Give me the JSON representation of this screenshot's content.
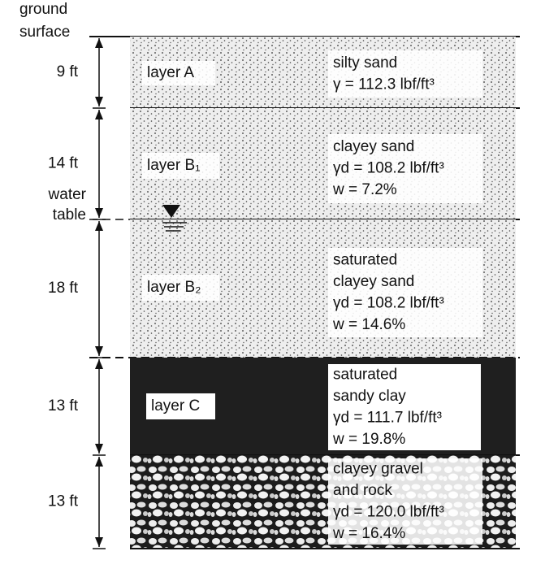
{
  "labels": {
    "ground_surface": [
      "ground",
      "surface"
    ],
    "water_table": [
      "water",
      "table"
    ]
  },
  "layers": [
    {
      "thickness": "9 ft",
      "name": "layer A",
      "description": [
        "silty sand",
        "γ = 112.3 lbf/ft³"
      ]
    },
    {
      "thickness": "14 ft",
      "name": "layer B₁",
      "description": [
        "clayey sand",
        "γd = 108.2 lbf/ft³",
        "w = 7.2%"
      ]
    },
    {
      "thickness": "18 ft",
      "name": "layer B₂",
      "description": [
        "saturated",
        "clayey sand",
        "γd = 108.2 lbf/ft³",
        "w = 14.6%"
      ]
    },
    {
      "thickness": "13 ft",
      "name": "layer C",
      "description": [
        "saturated",
        "sandy clay",
        "γd = 111.7 lbf/ft³",
        "w = 19.8%"
      ]
    },
    {
      "thickness": "13 ft",
      "name": "",
      "description": [
        "clayey gravel",
        "and rock",
        "γd = 120.0 lbf/ft³",
        "w = 16.4%"
      ]
    }
  ]
}
